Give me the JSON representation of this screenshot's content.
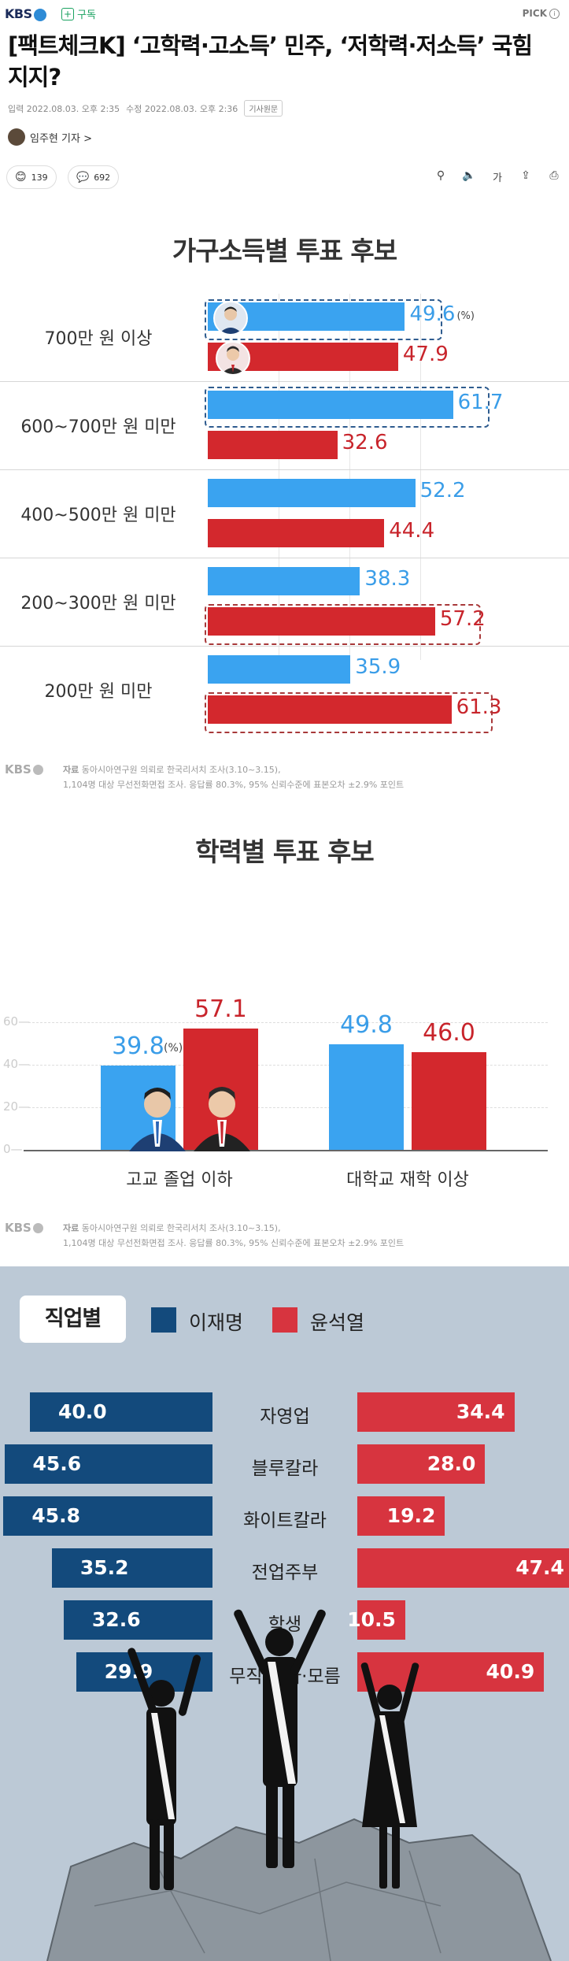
{
  "header": {
    "logo": "KBS",
    "subscribe_label": "구독",
    "pick_label": "PICK"
  },
  "article": {
    "headline": "[팩트체크K] ‘고학력·고소득’ 민주, ‘저학력·저소득’ 국힘 지지?",
    "input_time": "입력 2022.08.03. 오후 2:35",
    "edit_time": "수정 2022.08.03. 오후 2:36",
    "original_link": "기사원문",
    "reporter": "임주현 기자 >",
    "reaction_count": "139",
    "comment_count": "692"
  },
  "tools": {
    "font_label": "가"
  },
  "chart_data": [
    {
      "type": "bar",
      "orientation": "horizontal",
      "title": "가구소득별 투표 후보",
      "unit_label": "(%)",
      "categories": [
        "700만 원 이상",
        "600~700만 원 미만",
        "400~500만 원 미만",
        "200~300만 원 미만",
        "200만 원 미만"
      ],
      "series": [
        {
          "values": [
            49.6,
            61.7,
            52.2,
            38.3,
            35.9
          ]
        },
        {
          "values": [
            47.9,
            32.6,
            44.4,
            57.2,
            61.3
          ]
        }
      ],
      "colors": [
        "#3aa3f0",
        "#d3282d"
      ],
      "source_label": "자료",
      "source_lines": [
        "동아시아연구원 의뢰로 한국리서치 조사(3.10~3.15),",
        "1,104명 대상 무선전화면접 조사. 응답률 80.3%, 95% 신뢰수준에 표본오차 ±2.9% 포인트"
      ]
    },
    {
      "type": "bar",
      "title": "학력별 투표 후보",
      "unit_label": "(%)",
      "categories": [
        "고교 졸업 이하",
        "대학교 재학 이상"
      ],
      "series": [
        {
          "values": [
            39.8,
            49.8
          ]
        },
        {
          "values": [
            57.1,
            46.0
          ]
        }
      ],
      "ylim": [
        0,
        60
      ],
      "yticks": [
        "0",
        "20",
        "40",
        "60"
      ],
      "colors": [
        "#3aa3f0",
        "#d3282d"
      ],
      "source_label": "자료",
      "source_lines": [
        "동아시아연구원 의뢰로 한국리서치 조사(3.10~3.15),",
        "1,104명 대상 무선전화면접 조사. 응답률 80.3%, 95% 신뢰수준에 표본오차 ±2.9% 포인트"
      ]
    },
    {
      "type": "bar",
      "orientation": "diverging",
      "title": "직업별",
      "categories": [
        "자영업",
        "블루칼라",
        "화이트칼라",
        "전업주부",
        "학생",
        "무직·기타·모름"
      ],
      "series": [
        {
          "name": "이재명",
          "values": [
            40.0,
            45.6,
            45.8,
            35.2,
            32.6,
            29.9
          ]
        },
        {
          "name": "윤석열",
          "values": [
            34.4,
            28.0,
            19.2,
            47.4,
            10.5,
            40.9
          ]
        }
      ],
      "colors": [
        "#134a7c",
        "#d7343f"
      ]
    }
  ]
}
